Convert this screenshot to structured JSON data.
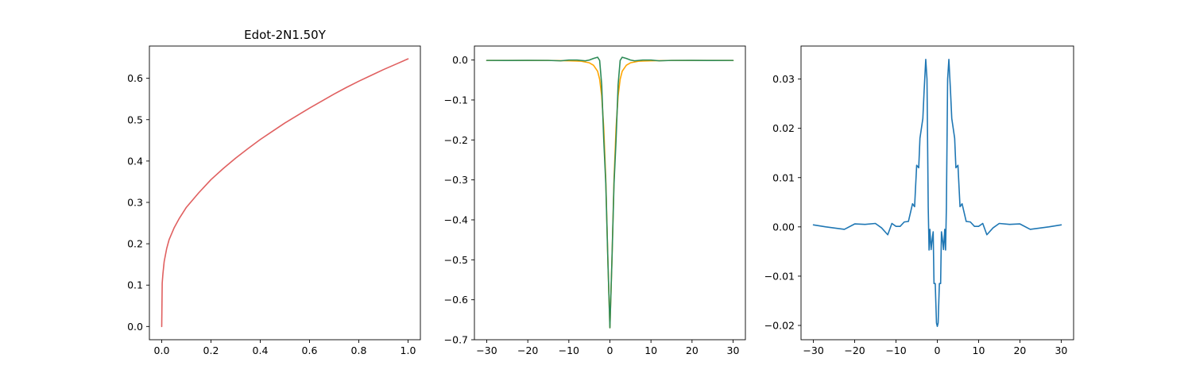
{
  "chart_data": [
    {
      "type": "line",
      "title": "Edot-2N1.50Y",
      "xlabel": "",
      "ylabel": "",
      "xlim": [
        -0.05,
        1.05
      ],
      "ylim": [
        -0.032,
        0.678
      ],
      "xticks": [
        0.0,
        0.2,
        0.4,
        0.6,
        0.8,
        1.0
      ],
      "yticks": [
        0.0,
        0.1,
        0.2,
        0.3,
        0.4,
        0.5,
        0.6
      ],
      "grid": false,
      "series": [
        {
          "color": "#e06060",
          "x": [
            0.0,
            0.002,
            0.005,
            0.01,
            0.02,
            0.03,
            0.05,
            0.07,
            0.1,
            0.15,
            0.2,
            0.25,
            0.3,
            0.35,
            0.4,
            0.45,
            0.5,
            0.55,
            0.6,
            0.65,
            0.7,
            0.75,
            0.8,
            0.85,
            0.9,
            0.95,
            1.0
          ],
          "y": [
            0.0,
            0.105,
            0.128,
            0.157,
            0.188,
            0.21,
            0.238,
            0.26,
            0.288,
            0.323,
            0.355,
            0.382,
            0.407,
            0.43,
            0.452,
            0.472,
            0.492,
            0.51,
            0.528,
            0.545,
            0.562,
            0.578,
            0.593,
            0.607,
            0.621,
            0.634,
            0.647
          ]
        }
      ]
    },
    {
      "type": "line",
      "title": "",
      "xlabel": "",
      "ylabel": "",
      "xlim": [
        -33,
        33
      ],
      "ylim": [
        -0.7,
        0.035
      ],
      "xticks": [
        -30,
        -20,
        -10,
        0,
        10,
        20,
        30
      ],
      "yticks": [
        0.0,
        -0.1,
        -0.2,
        -0.3,
        -0.4,
        -0.5,
        -0.6,
        -0.7
      ],
      "grid": false,
      "series": [
        {
          "color": "#ffa500",
          "x": [
            -30,
            -25,
            -20,
            -15,
            -10,
            -7,
            -5,
            -4,
            -3,
            -2.5,
            -2,
            -1.5,
            -1,
            -0.5,
            0,
            0.5,
            1,
            1.5,
            2,
            2.5,
            3,
            4,
            5,
            7,
            10,
            15,
            20,
            25,
            30
          ],
          "y": [
            -0.001,
            -0.001,
            -0.001,
            -0.001,
            -0.002,
            -0.003,
            -0.007,
            -0.013,
            -0.028,
            -0.048,
            -0.09,
            -0.17,
            -0.3,
            -0.5,
            -0.67,
            -0.5,
            -0.3,
            -0.17,
            -0.09,
            -0.048,
            -0.028,
            -0.013,
            -0.007,
            -0.003,
            -0.002,
            -0.001,
            -0.001,
            -0.001,
            -0.001
          ]
        },
        {
          "color": "#2e8b57",
          "x": [
            -30,
            -25,
            -20,
            -15,
            -12,
            -10,
            -8,
            -6,
            -5,
            -4,
            -3,
            -2.5,
            -2,
            -1.5,
            -1,
            -0.5,
            0,
            0.5,
            1,
            1.5,
            2,
            2.5,
            3,
            4,
            5,
            6,
            8,
            10,
            12,
            15,
            20,
            25,
            30
          ],
          "y": [
            -0.001,
            -0.0012,
            -0.0008,
            -0.001,
            -0.002,
            0.0,
            0.0,
            -0.002,
            0.0,
            0.004,
            0.007,
            -0.001,
            -0.062,
            -0.2,
            -0.31,
            -0.5,
            -0.67,
            -0.5,
            -0.31,
            -0.2,
            -0.062,
            -0.001,
            0.007,
            0.004,
            0.0,
            -0.002,
            0.0,
            0.0,
            -0.002,
            -0.001,
            -0.0008,
            -0.0012,
            -0.001
          ]
        }
      ]
    },
    {
      "type": "line",
      "title": "",
      "xlabel": "",
      "ylabel": "",
      "xlim": [
        -33,
        33
      ],
      "ylim": [
        -0.0229,
        0.0367
      ],
      "xticks": [
        -30,
        -20,
        -10,
        0,
        10,
        20,
        30
      ],
      "yticks": [
        0.03,
        0.02,
        0.01,
        0.0,
        -0.01,
        -0.02
      ],
      "grid": false,
      "series": [
        {
          "color": "#1f77b4",
          "x": [
            -30,
            -27,
            -22.5,
            -20,
            -17.5,
            -15,
            -13.5,
            -12,
            -11,
            -10,
            -9,
            -8,
            -7,
            -6,
            -5.5,
            -5,
            -4.5,
            -4.2,
            -3.5,
            -3.2,
            -2.8,
            -2.5,
            -2.2,
            -2,
            -1.8,
            -1.5,
            -1.2,
            -1.0,
            -0.8,
            -0.5,
            -0.2,
            0,
            0.2,
            0.5,
            0.8,
            1.0,
            1.2,
            1.5,
            1.8,
            2,
            2.2,
            2.5,
            2.8,
            3.2,
            3.5,
            4.2,
            4.5,
            5,
            5.5,
            6,
            7,
            8,
            9,
            10,
            11,
            12,
            13.5,
            15,
            17.5,
            20,
            22.5,
            27,
            30
          ],
          "y": [
            0.0004,
            0.0,
            -0.0005,
            0.0006,
            0.0005,
            0.0007,
            -0.0002,
            -0.0016,
            0.0007,
            0.0001,
            0.0001,
            0.001,
            0.0011,
            0.0047,
            0.0041,
            0.0125,
            0.012,
            0.018,
            0.022,
            0.0275,
            0.034,
            0.03,
            0.004,
            -0.0047,
            -0.0005,
            -0.0046,
            -0.0022,
            -0.001,
            -0.0115,
            -0.0115,
            -0.0195,
            -0.0202,
            -0.0195,
            -0.0115,
            -0.0115,
            -0.001,
            -0.0022,
            -0.0046,
            -0.0005,
            -0.0047,
            0.004,
            0.03,
            0.034,
            0.0275,
            0.022,
            0.018,
            0.012,
            0.0125,
            0.0041,
            0.0047,
            0.0011,
            0.001,
            0.0001,
            0.0001,
            0.0007,
            -0.0016,
            -0.0002,
            0.0007,
            0.0005,
            0.0006,
            -0.0005,
            0.0,
            0.0004
          ]
        }
      ]
    }
  ]
}
